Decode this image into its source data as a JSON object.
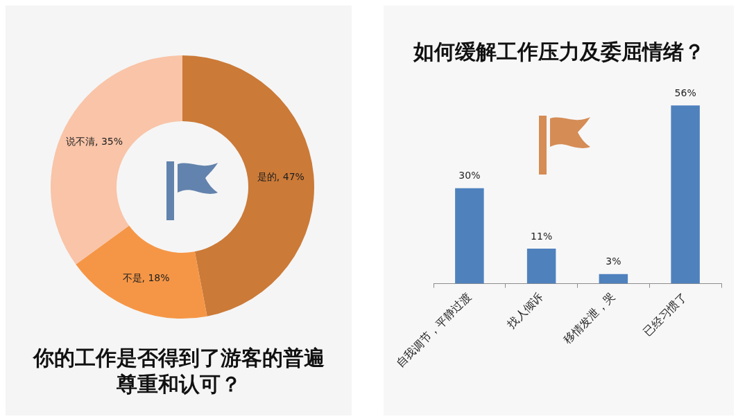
{
  "chart_data": [
    {
      "type": "donut",
      "title": "你的工作是否得到了游客的普遍尊重和认可？",
      "categories": [
        "是的",
        "不是",
        "说不清"
      ],
      "values": [
        47,
        18,
        35
      ],
      "colors": [
        "#cb7a38",
        "#f59646",
        "#f9c4a8"
      ],
      "value_labels": [
        ", 47%",
        ", 18%",
        ", 35%"
      ]
    },
    {
      "type": "bar",
      "title": "如何缓解工作压力及委屈情绪？",
      "categories": [
        "自我调节，平静过渡",
        "找人倾诉",
        "移情发泄，哭",
        "已经习惯了"
      ],
      "values": [
        30,
        11,
        3,
        56
      ],
      "color": "#4f81bd",
      "value_labels": [
        "30%",
        "11%",
        "3%",
        "56%"
      ]
    }
  ]
}
